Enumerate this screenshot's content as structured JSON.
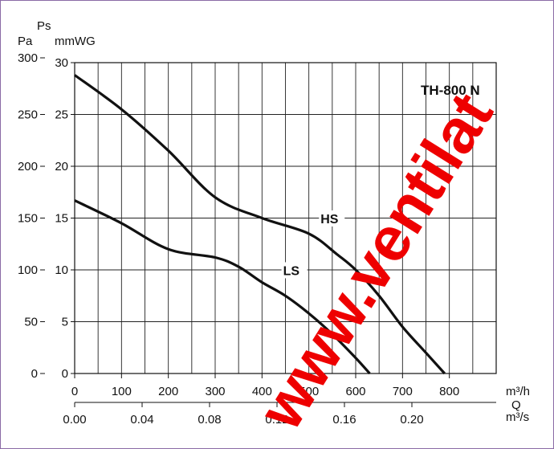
{
  "chart_data": {
    "type": "line",
    "title": "TH-800 N",
    "y_axis_header": "Ps",
    "y_left_unit": "Pa",
    "y_right_unit": "mmWG",
    "x_unit_top": "m³/h",
    "x_label": "Q",
    "x_unit_bottom": "m³/s",
    "xlim": [
      0,
      900
    ],
    "ylim": [
      0,
      30
    ],
    "y_ticks_mmwg": [
      "0",
      "5",
      "10",
      "15",
      "20",
      "25",
      "30"
    ],
    "y_ticks_pa": [
      "0",
      "50",
      "100",
      "150",
      "200",
      "250",
      "300"
    ],
    "x_ticks_m3h": [
      "0",
      "100",
      "200",
      "300",
      "400",
      "500",
      "600",
      "700",
      "800"
    ],
    "x_ticks_m3s": [
      "0.00",
      "0.04",
      "0.08",
      "0.12",
      "0.16",
      "0.20"
    ],
    "x_ticks_m3s_values": [
      0,
      0.04,
      0.08,
      0.12,
      0.16,
      0.2
    ],
    "grid": true,
    "series": [
      {
        "name": "HS",
        "x": [
          0,
          100,
          200,
          300,
          400,
          500,
          560,
          600,
          650,
          700,
          750,
          790
        ],
        "y": [
          28.8,
          25.5,
          21.5,
          17.0,
          15.0,
          13.5,
          11.5,
          10.0,
          7.5,
          4.5,
          2.0,
          0
        ]
      },
      {
        "name": "LS",
        "x": [
          0,
          100,
          200,
          300,
          350,
          400,
          450,
          500,
          550,
          600,
          630
        ],
        "y": [
          16.7,
          14.5,
          12.0,
          11.2,
          10.3,
          8.8,
          7.5,
          5.8,
          3.8,
          1.5,
          0
        ]
      }
    ]
  },
  "watermark": "www.ventilat"
}
